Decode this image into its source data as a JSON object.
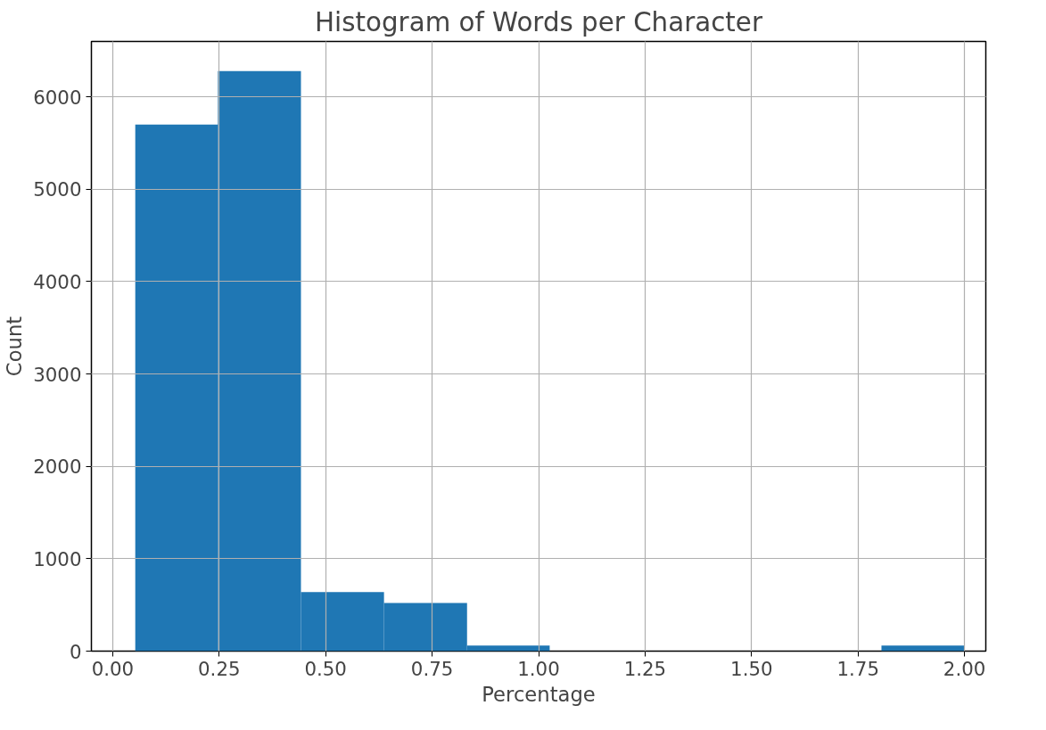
{
  "chart_data": {
    "type": "histogram",
    "title": "Histogram of Words per Character",
    "xlabel": "Percentage",
    "ylabel": "Count",
    "bins": [
      0.053,
      0.247,
      0.442,
      0.637,
      0.832,
      1.026,
      1.221,
      1.416,
      1.611,
      1.805,
      2.0
    ],
    "values": [
      5700,
      6280,
      640,
      520,
      60,
      0,
      0,
      0,
      0,
      60
    ],
    "color": "#1f77b4",
    "xlim": [
      -0.05,
      2.05
    ],
    "ylim": [
      0,
      6600
    ],
    "xticks": [
      {
        "value": 0,
        "label": "0.00"
      },
      {
        "value": 0.25,
        "label": "0.25"
      },
      {
        "value": 0.5,
        "label": "0.50"
      },
      {
        "value": 0.75,
        "label": "0.75"
      },
      {
        "value": 1,
        "label": "1.00"
      },
      {
        "value": 1.25,
        "label": "1.25"
      },
      {
        "value": 1.5,
        "label": "1.50"
      },
      {
        "value": 1.75,
        "label": "1.75"
      },
      {
        "value": 2,
        "label": "2.00"
      }
    ],
    "yticks": [
      0,
      1000,
      2000,
      3000,
      4000,
      5000,
      6000
    ],
    "grid": true
  }
}
